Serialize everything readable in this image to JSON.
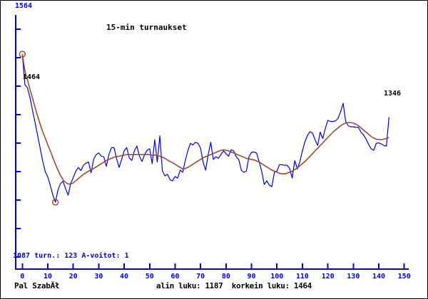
{
  "title": "15-min turnaukset",
  "y_axis": {
    "top_label": "1564",
    "bottom_label": "1087"
  },
  "stats_text": " turn.: 123 A-voitot: 1",
  "footer": {
    "player": "Pal SzabĂł",
    "summary": "alin luku: 1187  korkein luku: 1464"
  },
  "colors": {
    "axis_blue": "#0000dd",
    "rating_line": "#0000dd",
    "average_line": "#9c4a2d",
    "marker": "#9c4a2d",
    "label_black": "#000000"
  },
  "chart_data": {
    "type": "line",
    "title": "15-min turnaukset",
    "xlabel": "",
    "ylabel": "",
    "x_range": [
      0,
      150
    ],
    "y_range": [
      1087,
      1564
    ],
    "x_ticks": [
      0,
      10,
      20,
      30,
      40,
      50,
      60,
      70,
      80,
      90,
      100,
      110,
      120,
      130,
      140,
      150
    ],
    "legend": "none",
    "grid": false,
    "lowest_value": 1187,
    "highest_value": 1464,
    "tournament_count": 123,
    "a_wins": 1,
    "start_label": "1464",
    "end_label": "1346",
    "markers": [
      {
        "turn": 0,
        "value": 1464
      },
      {
        "turn": 13,
        "value": 1187
      }
    ],
    "series": [
      {
        "name": "rating",
        "color": "#0000dd",
        "width": 1.2,
        "values": [
          1464,
          1407,
          1401,
          1383,
          1359,
          1336,
          1312,
          1288,
          1264,
          1244,
          1234,
          1218,
          1200,
          1187,
          1210,
          1222,
          1226,
          1212,
          1200,
          1222,
          1233,
          1245,
          1252,
          1246,
          1256,
          1260,
          1262,
          1242,
          1267,
          1276,
          1279,
          1273,
          1272,
          1254,
          1276,
          1289,
          1289,
          1269,
          1252,
          1267,
          1283,
          1289,
          1270,
          1265,
          1283,
          1292,
          1273,
          1263,
          1276,
          1284,
          1287,
          1259,
          1304,
          1262,
          1311,
          1246,
          1236,
          1239,
          1229,
          1227,
          1235,
          1232,
          1247,
          1243,
          1265,
          1283,
          1297,
          1294,
          1299,
          1297,
          1288,
          1262,
          1247,
          1276,
          1299,
          1267,
          1272,
          1269,
          1276,
          1283,
          1278,
          1273,
          1285,
          1283,
          1272,
          1267,
          1247,
          1243,
          1245,
          1272,
          1280,
          1281,
          1279,
          1263,
          1245,
          1220,
          1227,
          1219,
          1216,
          1243,
          1245,
          1257,
          1257,
          1256,
          1256,
          1250,
          1232,
          1265,
          1249,
          1263,
          1283,
          1300,
          1312,
          1319,
          1316,
          1303,
          1293,
          1318,
          1306,
          1325,
          1340,
          1338,
          1338,
          1339,
          1344,
          1356,
          1372,
          1338,
          1330,
          1328,
          1328,
          1327,
          1327,
          1318,
          1313,
          1305,
          1295,
          1287,
          1284,
          1297,
          1298,
          1296,
          1293,
          1292,
          1346
        ]
      },
      {
        "name": "moving-average",
        "color": "#9c4a2d",
        "width": 1.6,
        "values": [
          1464,
          1433,
          1416,
          1398,
          1382,
          1364,
          1348,
          1333,
          1319,
          1307,
          1294,
          1283,
          1270,
          1258,
          1247,
          1237,
          1229,
          1224,
          1221,
          1221,
          1223,
          1227,
          1231,
          1235,
          1239,
          1242,
          1245,
          1247,
          1250,
          1253,
          1256,
          1259,
          1262,
          1265,
          1267,
          1269,
          1271,
          1272,
          1273,
          1274,
          1275,
          1276,
          1276,
          1276,
          1276,
          1276,
          1276,
          1276,
          1276,
          1276,
          1276,
          1275,
          1275,
          1274,
          1273,
          1271,
          1269,
          1266,
          1263,
          1261,
          1258,
          1255,
          1252,
          1249,
          1250,
          1252,
          1255,
          1258,
          1261,
          1264,
          1267,
          1270,
          1272,
          1274,
          1276,
          1278,
          1280,
          1282,
          1284,
          1285,
          1284,
          1283,
          1281,
          1279,
          1277,
          1275,
          1273,
          1271,
          1269,
          1268,
          1267,
          1266,
          1264,
          1262,
          1259,
          1256,
          1253,
          1250,
          1247,
          1245,
          1243,
          1241,
          1240,
          1240,
          1241,
          1243,
          1245,
          1248,
          1251,
          1255,
          1259,
          1263,
          1268,
          1273,
          1278,
          1283,
          1288,
          1293,
          1298,
          1303,
          1308,
          1313,
          1318,
          1322,
          1326,
          1330,
          1333,
          1335,
          1336,
          1336,
          1335,
          1333,
          1330,
          1326,
          1322,
          1318,
          1314,
          1310,
          1307,
          1305,
          1304,
          1304,
          1305,
          1306,
          1308
        ]
      }
    ]
  }
}
